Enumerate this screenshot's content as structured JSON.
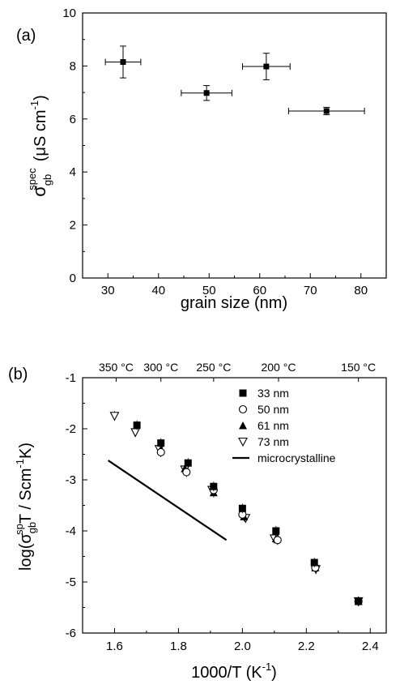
{
  "chart_data": [
    {
      "type": "scatter",
      "panel_label": "(a)",
      "xlabel": "grain size (nm)",
      "ylabel": {
        "symbol": "σ",
        "subscript": "gb",
        "superscript": "spec",
        "units": "(μS cm",
        "units_sup": "-1",
        "units_close": ")"
      },
      "xlim": [
        25,
        85
      ],
      "ylim": [
        0,
        10
      ],
      "xticks": [
        30,
        40,
        50,
        60,
        70,
        80
      ],
      "yticks": [
        0,
        2,
        4,
        6,
        8,
        10
      ],
      "grid": false,
      "points": [
        {
          "x": 33,
          "y": 8.15,
          "xerr": 3.5,
          "yerr": 0.6
        },
        {
          "x": 49.5,
          "y": 6.98,
          "xerr": 5,
          "yerr": 0.28
        },
        {
          "x": 61.3,
          "y": 7.98,
          "xerr": 4.7,
          "yerr": 0.5
        },
        {
          "x": 73.2,
          "y": 6.3,
          "xerr": 7.5,
          "yerr": 0.14
        }
      ]
    },
    {
      "type": "scatter",
      "panel_label": "(b)",
      "xlabel": {
        "text": "1000/T (K",
        "sup": "-1",
        "close": ")"
      },
      "ylabel": {
        "prefix": "log(σ",
        "sub": "gb",
        "sup": "sp",
        "mid": "T / Scm",
        "sup2": "-1",
        "suffix": "K)"
      },
      "xlim": [
        1.5,
        2.45
      ],
      "ylim": [
        -6,
        -1
      ],
      "xticks": [
        1.6,
        1.8,
        2.0,
        2.2,
        2.4
      ],
      "xtick_labels": [
        "1.6",
        "1.8",
        "2.0",
        "2.2",
        "2.4"
      ],
      "yticks": [
        -6,
        -5,
        -4,
        -3,
        -2,
        -1
      ],
      "grid": false,
      "legend_position": "top-right",
      "top_axis_labels": [
        {
          "x": 1.605,
          "label": "350 °C"
        },
        {
          "x": 1.745,
          "label": "300 °C"
        },
        {
          "x": 1.91,
          "label": "250 °C"
        },
        {
          "x": 2.113,
          "label": "200 °C"
        },
        {
          "x": 2.363,
          "label": "150 °C"
        }
      ],
      "series": [
        {
          "name": "33 nm",
          "marker": "filled-square",
          "points": [
            [
              1.67,
              -1.93
            ],
            [
              1.745,
              -2.28
            ],
            [
              1.83,
              -2.67
            ],
            [
              1.91,
              -3.13
            ],
            [
              2.0,
              -3.56
            ],
            [
              2.105,
              -4.0
            ],
            [
              2.225,
              -4.62
            ],
            [
              2.363,
              -5.38
            ]
          ]
        },
        {
          "name": "50 nm",
          "marker": "open-circle",
          "points": [
            [
              1.745,
              -2.46
            ],
            [
              1.825,
              -2.85
            ],
            [
              1.91,
              -3.2
            ],
            [
              2.0,
              -3.68
            ],
            [
              2.11,
              -4.18
            ],
            [
              2.228,
              -4.72
            ],
            [
              2.363,
              -5.38
            ]
          ]
        },
        {
          "name": "61 nm",
          "marker": "filled-triangle",
          "points": [
            [
              1.745,
              -2.4
            ],
            [
              1.82,
              -2.78
            ],
            [
              1.91,
              -3.25
            ],
            [
              2.005,
              -3.72
            ],
            [
              2.105,
              -4.15
            ],
            [
              2.228,
              -4.72
            ],
            [
              2.363,
              -5.38
            ]
          ]
        },
        {
          "name": "73 nm",
          "marker": "open-triangle-down",
          "points": [
            [
              1.6,
              -1.75
            ],
            [
              1.665,
              -2.07
            ],
            [
              1.74,
              -2.4
            ],
            [
              1.82,
              -2.8
            ],
            [
              1.905,
              -3.2
            ],
            [
              2.01,
              -3.75
            ],
            [
              2.1,
              -4.15
            ],
            [
              2.23,
              -4.75
            ],
            [
              2.363,
              -5.38
            ]
          ]
        },
        {
          "name": "microcrystalline",
          "marker": "line",
          "points": [
            [
              1.58,
              -2.62
            ],
            [
              1.95,
              -4.18
            ]
          ]
        }
      ]
    }
  ]
}
